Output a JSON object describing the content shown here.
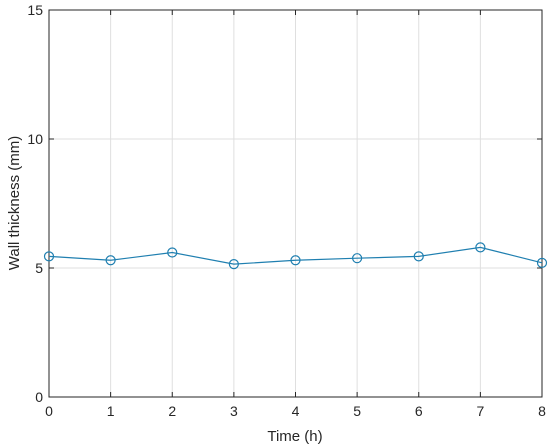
{
  "chart_data": {
    "type": "line",
    "xlabel": "Time (h)",
    "ylabel": "Wall thickness (mm)",
    "xlim": [
      0,
      8
    ],
    "ylim": [
      0,
      15
    ],
    "xticks": [
      0,
      1,
      2,
      3,
      4,
      5,
      6,
      7,
      8
    ],
    "yticks": [
      0,
      5,
      10,
      15
    ],
    "grid": true,
    "marker": "circle",
    "line_color": "#1f7fb0",
    "series": [
      {
        "x": [
          0,
          1,
          2,
          3,
          4,
          5,
          6,
          7,
          8
        ],
        "y": [
          5.45,
          5.3,
          5.6,
          5.15,
          5.3,
          5.38,
          5.45,
          5.8,
          5.2
        ]
      }
    ]
  }
}
